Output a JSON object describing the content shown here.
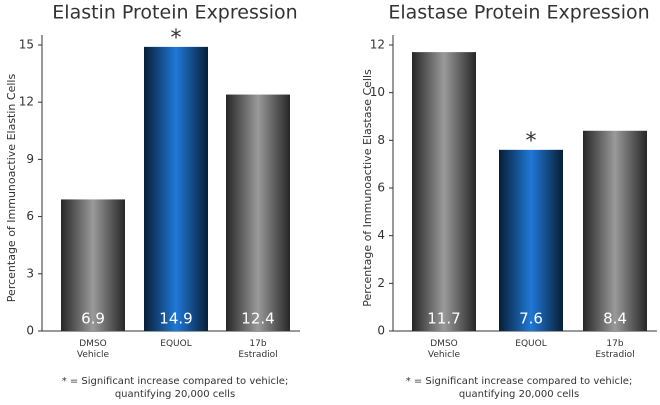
{
  "chart_data": [
    {
      "type": "bar",
      "title": "Elastin Protein Expression",
      "ylabel": "Percentage of Immunoactive Elastin Cells",
      "categories": [
        "DMSO Vehicle",
        "EQUOL",
        "17b Estradiol"
      ],
      "values": [
        6.9,
        14.9,
        12.4
      ],
      "colors": [
        "#9a9a9a",
        "#1f78d8",
        "#9a9a9a"
      ],
      "ylim": [
        0,
        15
      ],
      "yticks": [
        0,
        3,
        6,
        9,
        12,
        15
      ],
      "annotation": "*",
      "footnote": [
        "* = Significant increase compared to vehicle;",
        "quantifying 20,000 cells"
      ]
    },
    {
      "type": "bar",
      "title": "Elastase Protein Expression",
      "ylabel": "Percentage of Immunoactive Elastase Cells",
      "categories": [
        "DMSO Vehicle",
        "EQUOL",
        "17b Estradiol"
      ],
      "values": [
        11.7,
        7.6,
        8.4
      ],
      "colors": [
        "#9a9a9a",
        "#1f78d8",
        "#9a9a9a"
      ],
      "ylim": [
        0,
        12
      ],
      "yticks": [
        0,
        2,
        4,
        6,
        8,
        10,
        12
      ],
      "annotation": "*",
      "footnote": [
        "* = Significant increase compared to vehicle;",
        "quantifying 20,000 cells"
      ]
    }
  ]
}
